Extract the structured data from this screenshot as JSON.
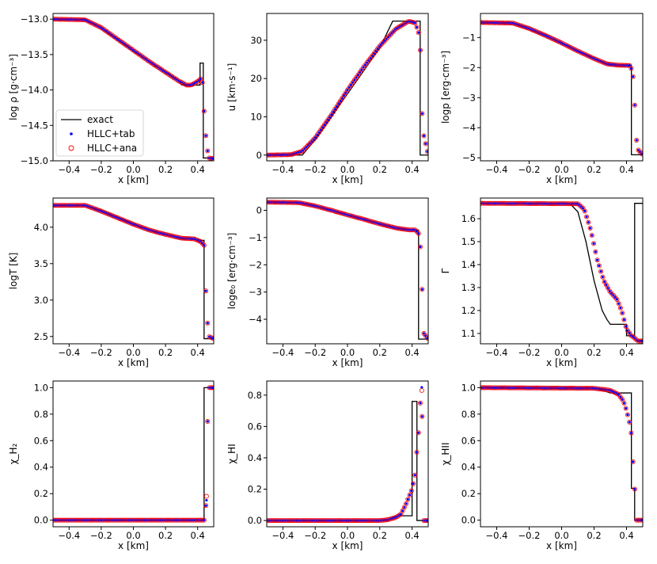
{
  "legend": {
    "entries": [
      {
        "label": "exact",
        "style": "line",
        "color": "#000000"
      },
      {
        "label": "HLLC+tab",
        "style": "dot",
        "color": "#0000ff"
      },
      {
        "label": "HLLC+ana",
        "style": "circle",
        "color": "#ff0000"
      }
    ],
    "placement": "lower-left of first panel"
  },
  "colors": {
    "exact": "#000000",
    "tab": "#0000ff",
    "ana": "#ff0000"
  },
  "chart_data": [
    {
      "type": "line",
      "ylabel": "log ρ [g·cm⁻³]",
      "xlabel": "x [km]",
      "xlim": [
        -0.5,
        0.5
      ],
      "ylim": [
        -15.0,
        -12.92
      ],
      "xticks": [
        -0.4,
        -0.2,
        0.0,
        0.2,
        0.4
      ],
      "yticks": [
        -15.0,
        -14.5,
        -14.0,
        -13.5,
        -13.0
      ],
      "yticklabels": [
        "−15.0",
        "−14.5",
        "−14.0",
        "−13.5",
        "−13.0"
      ],
      "exact": [
        [
          -0.5,
          -13.0
        ],
        [
          -0.3,
          -13.0
        ],
        [
          -0.2,
          -13.13
        ],
        [
          -0.1,
          -13.29
        ],
        [
          0.0,
          -13.45
        ],
        [
          0.1,
          -13.6
        ],
        [
          0.2,
          -13.74
        ],
        [
          0.28,
          -13.86
        ],
        [
          0.3,
          -13.93
        ],
        [
          0.4,
          -13.93
        ],
        [
          0.415,
          -13.93
        ],
        [
          0.415,
          -13.62
        ],
        [
          0.435,
          -13.62
        ],
        [
          0.435,
          -14.96
        ],
        [
          0.5,
          -14.96
        ]
      ],
      "numeric": [
        [
          -0.5,
          -13.0
        ],
        [
          -0.3,
          -13.01
        ],
        [
          -0.2,
          -13.12
        ],
        [
          -0.1,
          -13.28
        ],
        [
          0.0,
          -13.44
        ],
        [
          0.1,
          -13.6
        ],
        [
          0.2,
          -13.75
        ],
        [
          0.28,
          -13.87
        ],
        [
          0.33,
          -13.93
        ],
        [
          0.36,
          -13.93
        ],
        [
          0.4,
          -13.88
        ],
        [
          0.42,
          -13.84
        ],
        [
          0.43,
          -13.9
        ],
        [
          0.44,
          -14.3
        ],
        [
          0.455,
          -14.77
        ],
        [
          0.47,
          -14.96
        ],
        [
          0.5,
          -14.97
        ]
      ]
    },
    {
      "type": "line",
      "ylabel": "u [km·s⁻¹]",
      "xlabel": "x [km]",
      "xlim": [
        -0.5,
        0.5
      ],
      "ylim": [
        -1.5,
        37
      ],
      "xticks": [
        -0.4,
        -0.2,
        0.0,
        0.2,
        0.4
      ],
      "yticks": [
        0,
        10,
        20,
        30
      ],
      "yticklabels": [
        "0",
        "10",
        "20",
        "30"
      ],
      "exact": [
        [
          -0.5,
          0
        ],
        [
          -0.28,
          0
        ],
        [
          -0.2,
          4
        ],
        [
          -0.1,
          10
        ],
        [
          0.0,
          16
        ],
        [
          0.1,
          22
        ],
        [
          0.2,
          28
        ],
        [
          0.28,
          35
        ],
        [
          0.45,
          35
        ],
        [
          0.45,
          0
        ],
        [
          0.5,
          0
        ]
      ],
      "numeric": [
        [
          -0.5,
          0
        ],
        [
          -0.35,
          0.1
        ],
        [
          -0.28,
          1
        ],
        [
          -0.2,
          4.5
        ],
        [
          -0.1,
          10.5
        ],
        [
          0.0,
          17
        ],
        [
          0.1,
          23
        ],
        [
          0.2,
          28.5
        ],
        [
          0.3,
          33
        ],
        [
          0.38,
          35
        ],
        [
          0.42,
          34.5
        ],
        [
          0.44,
          32
        ],
        [
          0.45,
          29
        ],
        [
          0.455,
          21
        ],
        [
          0.465,
          6.5
        ],
        [
          0.5,
          0
        ]
      ]
    },
    {
      "type": "line",
      "ylabel": "logp [erg·cm⁻³]",
      "xlabel": "x [km]",
      "xlim": [
        -0.5,
        0.5
      ],
      "ylim": [
        -5.1,
        -0.2
      ],
      "xticks": [
        -0.4,
        -0.2,
        0.0,
        0.2,
        0.4
      ],
      "yticks": [
        -5,
        -4,
        -3,
        -2,
        -1
      ],
      "yticklabels": [
        "−5",
        "−4",
        "−3",
        "−2",
        "−1"
      ],
      "exact": [
        [
          -0.5,
          -0.5
        ],
        [
          -0.3,
          -0.52
        ],
        [
          -0.2,
          -0.72
        ],
        [
          -0.1,
          -0.95
        ],
        [
          0.0,
          -1.2
        ],
        [
          0.1,
          -1.45
        ],
        [
          0.2,
          -1.7
        ],
        [
          0.28,
          -1.88
        ],
        [
          0.3,
          -1.92
        ],
        [
          0.43,
          -1.92
        ],
        [
          0.43,
          -4.9
        ],
        [
          0.5,
          -4.9
        ]
      ],
      "numeric": [
        [
          -0.5,
          -0.5
        ],
        [
          -0.3,
          -0.52
        ],
        [
          -0.2,
          -0.7
        ],
        [
          -0.1,
          -0.93
        ],
        [
          0.0,
          -1.18
        ],
        [
          0.1,
          -1.45
        ],
        [
          0.2,
          -1.7
        ],
        [
          0.28,
          -1.88
        ],
        [
          0.35,
          -1.92
        ],
        [
          0.42,
          -1.93
        ],
        [
          0.435,
          -2.1
        ],
        [
          0.445,
          -2.5
        ],
        [
          0.455,
          -3.75
        ],
        [
          0.465,
          -4.7
        ],
        [
          0.5,
          -4.9
        ]
      ]
    },
    {
      "type": "line",
      "ylabel": "logT [K]",
      "xlabel": "x [km]",
      "xlim": [
        -0.5,
        0.5
      ],
      "ylim": [
        2.4,
        4.4
      ],
      "xticks": [
        -0.4,
        -0.2,
        0.0,
        0.2,
        0.4
      ],
      "yticks": [
        2.5,
        3.0,
        3.5,
        4.0
      ],
      "yticklabels": [
        "2.5",
        "3.0",
        "3.5",
        "4.0"
      ],
      "exact": [
        [
          -0.5,
          4.3
        ],
        [
          -0.3,
          4.3
        ],
        [
          -0.2,
          4.23
        ],
        [
          -0.1,
          4.14
        ],
        [
          0.0,
          4.05
        ],
        [
          0.1,
          3.96
        ],
        [
          0.2,
          3.9
        ],
        [
          0.28,
          3.86
        ],
        [
          0.3,
          3.84
        ],
        [
          0.42,
          3.83
        ],
        [
          0.42,
          3.82
        ],
        [
          0.44,
          3.82
        ],
        [
          0.44,
          2.47
        ],
        [
          0.5,
          2.47
        ]
      ],
      "numeric": [
        [
          -0.5,
          4.3
        ],
        [
          -0.3,
          4.3
        ],
        [
          -0.2,
          4.22
        ],
        [
          -0.1,
          4.13
        ],
        [
          0.0,
          4.04
        ],
        [
          0.1,
          3.96
        ],
        [
          0.2,
          3.9
        ],
        [
          0.3,
          3.85
        ],
        [
          0.38,
          3.84
        ],
        [
          0.42,
          3.8
        ],
        [
          0.44,
          3.75
        ],
        [
          0.45,
          3.17
        ],
        [
          0.46,
          2.73
        ],
        [
          0.47,
          2.5
        ],
        [
          0.5,
          2.47
        ]
      ]
    },
    {
      "type": "line",
      "ylabel": "loge₀ [erg·cm⁻³]",
      "xlabel": "x [km]",
      "xlim": [
        -0.5,
        0.5
      ],
      "ylim": [
        -4.9,
        0.45
      ],
      "xticks": [
        -0.4,
        -0.2,
        0.0,
        0.2,
        0.4
      ],
      "yticks": [
        -4,
        -3,
        -2,
        -1,
        0
      ],
      "yticklabels": [
        "−4",
        "−3",
        "−2",
        "−1",
        "0"
      ],
      "exact": [
        [
          -0.5,
          0.3
        ],
        [
          -0.3,
          0.28
        ],
        [
          -0.2,
          0.17
        ],
        [
          -0.1,
          0.0
        ],
        [
          0.0,
          -0.17
        ],
        [
          0.1,
          -0.33
        ],
        [
          0.2,
          -0.5
        ],
        [
          0.3,
          -0.65
        ],
        [
          0.34,
          -0.72
        ],
        [
          0.44,
          -0.72
        ],
        [
          0.44,
          -4.73
        ],
        [
          0.5,
          -4.73
        ]
      ],
      "numeric": [
        [
          -0.5,
          0.3
        ],
        [
          -0.3,
          0.28
        ],
        [
          -0.2,
          0.16
        ],
        [
          -0.1,
          0.0
        ],
        [
          0.0,
          -0.17
        ],
        [
          0.1,
          -0.33
        ],
        [
          0.2,
          -0.5
        ],
        [
          0.3,
          -0.65
        ],
        [
          0.38,
          -0.72
        ],
        [
          0.42,
          -0.72
        ],
        [
          0.44,
          -0.85
        ],
        [
          0.445,
          -1.1
        ],
        [
          0.455,
          -1.5
        ],
        [
          0.46,
          -2.5
        ],
        [
          0.47,
          -4.5
        ],
        [
          0.5,
          -4.73
        ]
      ]
    },
    {
      "type": "line",
      "ylabel": "Γ",
      "xlabel": "x [km]",
      "xlim": [
        -0.5,
        0.5
      ],
      "ylim": [
        1.055,
        1.69
      ],
      "xticks": [
        -0.4,
        -0.2,
        0.0,
        0.2,
        0.4
      ],
      "yticks": [
        1.1,
        1.2,
        1.3,
        1.4,
        1.5,
        1.6
      ],
      "yticklabels": [
        "1.1",
        "1.2",
        "1.3",
        "1.4",
        "1.5",
        "1.6"
      ],
      "exact": [
        [
          -0.5,
          1.667
        ],
        [
          0.05,
          1.667
        ],
        [
          0.1,
          1.63
        ],
        [
          0.15,
          1.5
        ],
        [
          0.2,
          1.33
        ],
        [
          0.25,
          1.2
        ],
        [
          0.28,
          1.16
        ],
        [
          0.3,
          1.14
        ],
        [
          0.4,
          1.14
        ],
        [
          0.4,
          1.09
        ],
        [
          0.45,
          1.09
        ],
        [
          0.45,
          1.667
        ],
        [
          0.5,
          1.667
        ]
      ],
      "numeric": [
        [
          -0.5,
          1.667
        ],
        [
          0.1,
          1.665
        ],
        [
          0.14,
          1.64
        ],
        [
          0.18,
          1.55
        ],
        [
          0.22,
          1.42
        ],
        [
          0.26,
          1.33
        ],
        [
          0.3,
          1.28
        ],
        [
          0.34,
          1.25
        ],
        [
          0.37,
          1.2
        ],
        [
          0.4,
          1.12
        ],
        [
          0.43,
          1.09
        ],
        [
          0.45,
          1.08
        ],
        [
          0.46,
          1.073
        ],
        [
          0.47,
          1.067
        ]
      ]
    },
    {
      "type": "line",
      "ylabel": "χ_H₂",
      "xlabel": "x [km]",
      "xlim": [
        -0.5,
        0.5
      ],
      "ylim": [
        -0.05,
        1.05
      ],
      "xticks": [
        -0.4,
        -0.2,
        0.0,
        0.2,
        0.4
      ],
      "yticks": [
        0.0,
        0.2,
        0.4,
        0.6,
        0.8,
        1.0
      ],
      "yticklabels": [
        "0.0",
        "0.2",
        "0.4",
        "0.6",
        "0.8",
        "1.0"
      ],
      "exact": [
        [
          -0.5,
          0
        ],
        [
          0.44,
          0
        ],
        [
          0.44,
          1
        ],
        [
          0.5,
          1
        ]
      ],
      "numeric": [
        [
          -0.5,
          0
        ],
        [
          0.44,
          0
        ],
        [
          0.455,
          0.15
        ],
        [
          0.465,
          1
        ],
        [
          0.5,
          1
        ]
      ],
      "outliers": {
        "tab": [
          [
            0.455,
            0.15
          ]
        ],
        "ana": [
          [
            0.455,
            0.18
          ]
        ]
      }
    },
    {
      "type": "line",
      "ylabel": "χ_HI",
      "xlabel": "x [km]",
      "xlim": [
        -0.5,
        0.5
      ],
      "ylim": [
        -0.04,
        0.89
      ],
      "xticks": [
        -0.4,
        -0.2,
        0.0,
        0.2,
        0.4
      ],
      "yticks": [
        0.0,
        0.2,
        0.4,
        0.6,
        0.8
      ],
      "yticklabels": [
        "0.0",
        "0.2",
        "0.4",
        "0.6",
        "0.8"
      ],
      "exact": [
        [
          -0.5,
          0
        ],
        [
          0.25,
          0
        ],
        [
          0.28,
          0.02
        ],
        [
          0.3,
          0.03
        ],
        [
          0.4,
          0.03
        ],
        [
          0.4,
          0.76
        ],
        [
          0.43,
          0.76
        ],
        [
          0.43,
          0
        ],
        [
          0.5,
          0
        ]
      ],
      "numeric": [
        [
          -0.5,
          0
        ],
        [
          0.2,
          0
        ],
        [
          0.25,
          0.005
        ],
        [
          0.3,
          0.02
        ],
        [
          0.33,
          0.04
        ],
        [
          0.36,
          0.1
        ],
        [
          0.38,
          0.15
        ],
        [
          0.4,
          0.2
        ],
        [
          0.42,
          0.3
        ],
        [
          0.43,
          0.45
        ],
        [
          0.44,
          0.56
        ],
        [
          0.45,
          0.74
        ],
        [
          0.46,
          0.83
        ],
        [
          0.47,
          0
        ],
        [
          0.5,
          0
        ]
      ],
      "outliers": {
        "tab": [
          [
            0.46,
            0.85
          ]
        ],
        "ana": [
          [
            0.46,
            0.83
          ]
        ]
      }
    },
    {
      "type": "line",
      "ylabel": "χ_HII",
      "xlabel": "x [km]",
      "xlim": [
        -0.5,
        0.5
      ],
      "ylim": [
        -0.05,
        1.05
      ],
      "xticks": [
        -0.4,
        -0.2,
        0.0,
        0.2,
        0.4
      ],
      "yticks": [
        0.0,
        0.2,
        0.4,
        0.6,
        0.8,
        1.0
      ],
      "yticklabels": [
        "0.0",
        "0.2",
        "0.4",
        "0.6",
        "0.8",
        "1.0"
      ],
      "exact": [
        [
          -0.5,
          1
        ],
        [
          0.2,
          1
        ],
        [
          0.25,
          0.98
        ],
        [
          0.3,
          0.96
        ],
        [
          0.43,
          0.96
        ],
        [
          0.43,
          0.24
        ],
        [
          0.45,
          0.24
        ],
        [
          0.45,
          0
        ],
        [
          0.5,
          0
        ]
      ],
      "numeric": [
        [
          -0.5,
          1
        ],
        [
          0.2,
          0.995
        ],
        [
          0.3,
          0.98
        ],
        [
          0.35,
          0.95
        ],
        [
          0.38,
          0.9
        ],
        [
          0.4,
          0.83
        ],
        [
          0.42,
          0.73
        ],
        [
          0.43,
          0.65
        ],
        [
          0.44,
          0.44
        ],
        [
          0.45,
          0.26
        ],
        [
          0.46,
          0
        ],
        [
          0.5,
          0
        ]
      ]
    }
  ]
}
